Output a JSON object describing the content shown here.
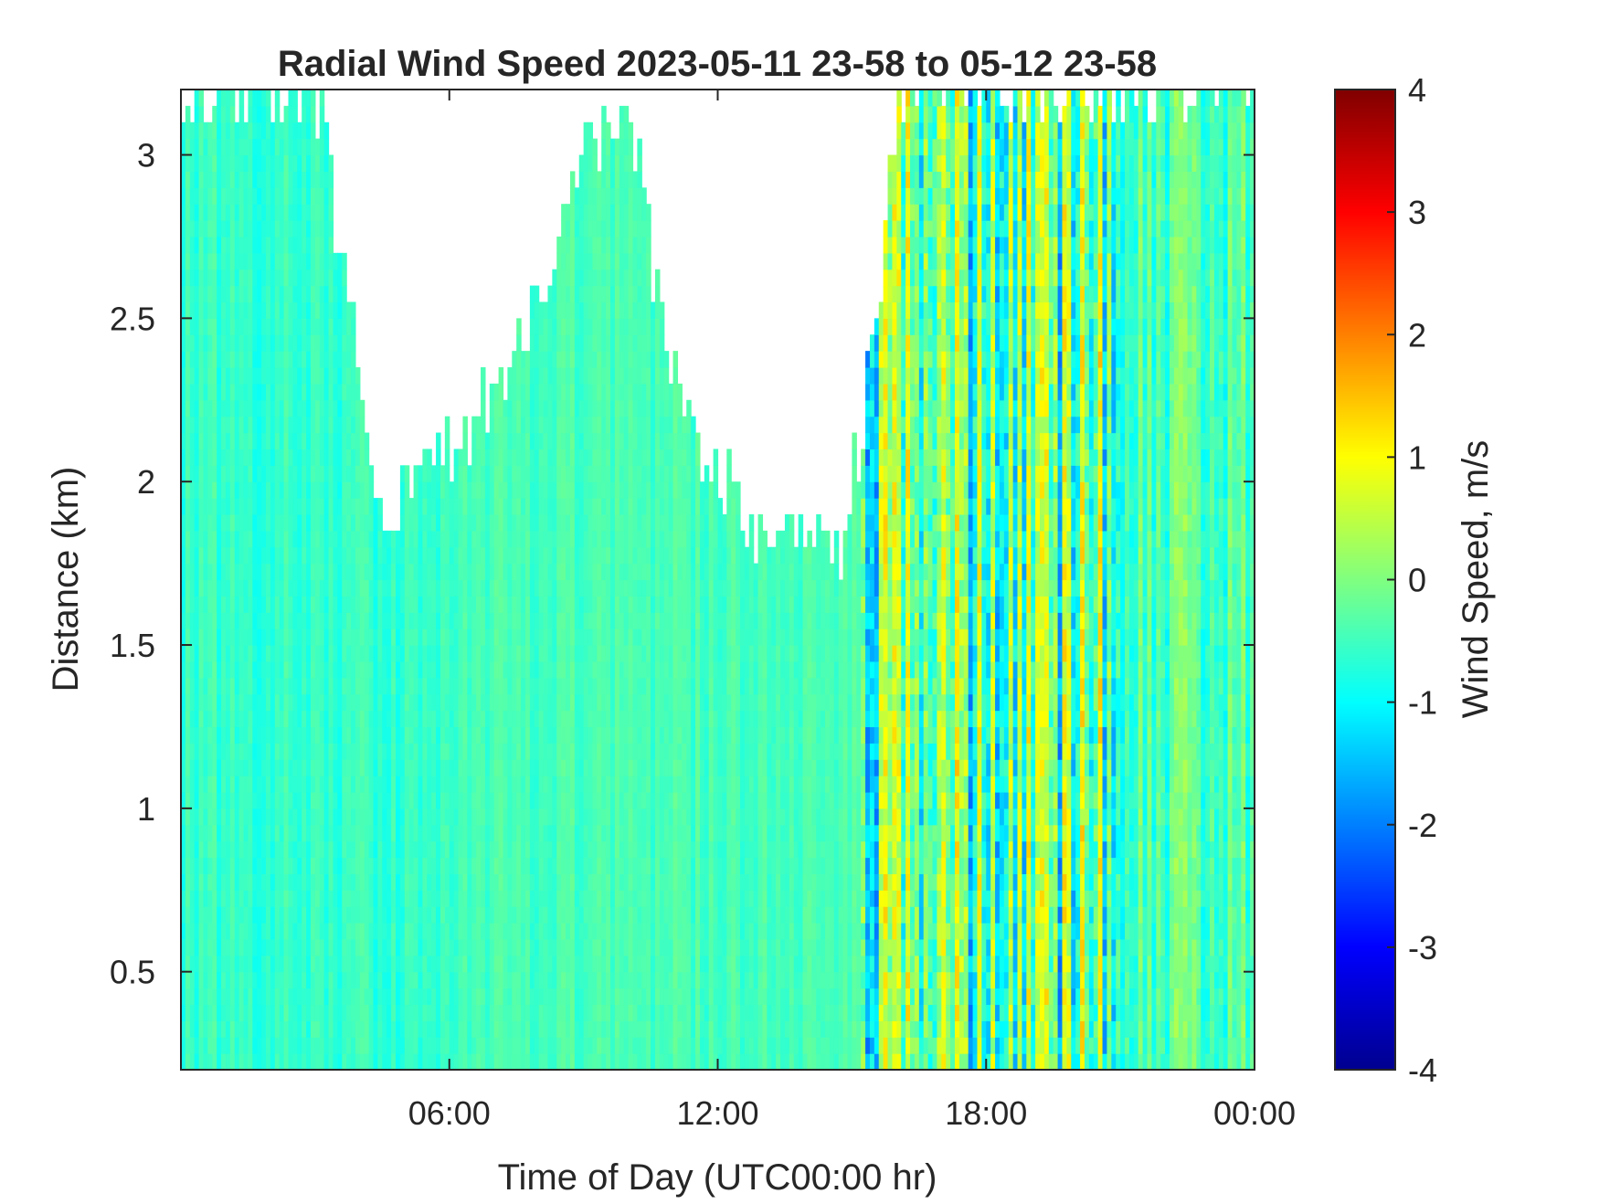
{
  "chart_data": {
    "type": "heatmap",
    "title": "Radial Wind Speed 2023-05-11 23-58 to 05-12 23-58",
    "xlabel": "Time of Day (UTC00:00 hr)",
    "ylabel": "Distance (km)",
    "colorbar_label": "Wind Speed, m/s",
    "xlim": [
      0,
      24
    ],
    "ylim": [
      0.2,
      3.2
    ],
    "clim": [
      -4,
      4
    ],
    "colormap": "jet",
    "x_ticks": [
      {
        "value": 6,
        "label": "06:00"
      },
      {
        "value": 12,
        "label": "12:00"
      },
      {
        "value": 18,
        "label": "18:00"
      },
      {
        "value": 24,
        "label": "00:00"
      }
    ],
    "y_ticks": [
      {
        "value": 0.5,
        "label": "0.5"
      },
      {
        "value": 1,
        "label": "1"
      },
      {
        "value": 1.5,
        "label": "1.5"
      },
      {
        "value": 2,
        "label": "2"
      },
      {
        "value": 2.5,
        "label": "2.5"
      },
      {
        "value": 3,
        "label": "3"
      }
    ],
    "colorbar_ticks": [
      {
        "value": 4,
        "label": "4"
      },
      {
        "value": 3,
        "label": "3"
      },
      {
        "value": 2,
        "label": "2"
      },
      {
        "value": 1,
        "label": "1"
      },
      {
        "value": 0,
        "label": "0"
      },
      {
        "value": -1,
        "label": "-1"
      },
      {
        "value": -2,
        "label": "-2"
      },
      {
        "value": -3,
        "label": "-3"
      },
      {
        "value": -4,
        "label": "-4"
      }
    ],
    "data_top_km": [
      [
        0,
        3.2
      ],
      [
        1,
        3.2
      ],
      [
        2,
        3.2
      ],
      [
        3,
        3.2
      ],
      [
        3.5,
        2.8
      ],
      [
        4,
        2.4
      ],
      [
        4.5,
        1.9
      ],
      [
        5,
        2.0
      ],
      [
        6,
        2.1
      ],
      [
        7,
        2.3
      ],
      [
        8,
        2.5
      ],
      [
        9,
        3.0
      ],
      [
        10,
        3.2
      ],
      [
        10.5,
        2.7
      ],
      [
        11,
        2.3
      ],
      [
        12,
        2.0
      ],
      [
        13,
        1.85
      ],
      [
        14,
        1.8
      ],
      [
        14.7,
        1.8
      ],
      [
        15.5,
        2.4
      ],
      [
        16,
        3.2
      ],
      [
        24,
        3.2
      ]
    ],
    "time_segments": [
      {
        "start": 0,
        "end": 6,
        "mean_speed": -0.6,
        "variability": 0.35
      },
      {
        "start": 6,
        "end": 15.2,
        "mean_speed": -0.45,
        "variability": 0.3
      },
      {
        "start": 15.2,
        "end": 21,
        "mean_speed": -0.3,
        "variability": 1.9
      },
      {
        "start": 21,
        "end": 24,
        "mean_speed": -0.4,
        "variability": 0.8
      }
    ]
  }
}
